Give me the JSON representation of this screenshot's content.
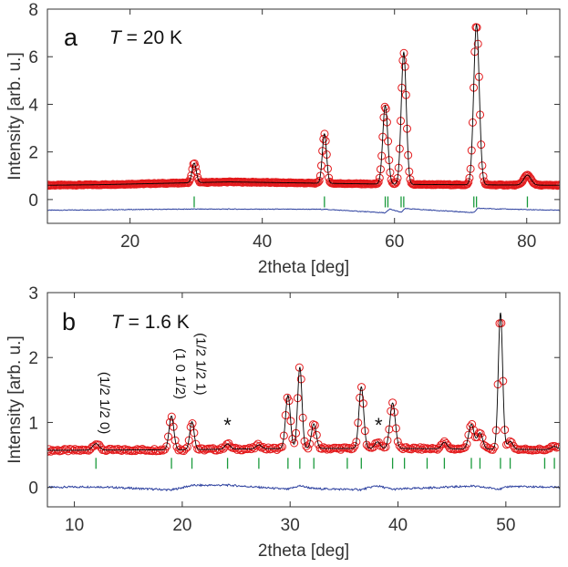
{
  "chart_data": [
    {
      "type": "scatter",
      "panel": "a",
      "temperature_label": "T = 20 K",
      "temperature_label_parts": {
        "var": "T",
        "rest": " = 20 K"
      },
      "xlabel": "2theta [deg]",
      "ylabel": "Intensity [arb. u.]",
      "xlim": [
        7.5,
        85
      ],
      "ylim": [
        -1,
        8
      ],
      "xticks": [
        20,
        40,
        60,
        80
      ],
      "yticks": [
        0,
        2,
        4,
        6,
        8
      ],
      "background": {
        "x": [
          7.5,
          15,
          25,
          35,
          45,
          50,
          55,
          60,
          70,
          85
        ],
        "y": [
          0.6,
          0.62,
          0.68,
          0.74,
          0.7,
          0.68,
          0.66,
          0.64,
          0.62,
          0.6
        ]
      },
      "peaks": [
        {
          "x": 29.7,
          "height": 0.82,
          "width": 0.32
        },
        {
          "x": 49.4,
          "height": 2.08,
          "width": 0.32
        },
        {
          "x": 58.6,
          "height": 3.3,
          "width": 0.38
        },
        {
          "x": 61.4,
          "height": 5.55,
          "width": 0.38
        },
        {
          "x": 72.4,
          "height": 6.75,
          "width": 0.42
        },
        {
          "x": 80.1,
          "height": 0.42,
          "width": 0.55
        }
      ],
      "bragg_ticks": {
        "y": -0.1,
        "x": [
          29.7,
          49.4,
          58.6,
          59.0,
          61.0,
          61.4,
          72.0,
          72.4,
          80.1
        ]
      },
      "difference": {
        "offset": -0.45,
        "x": [
          7.5,
          29.7,
          49.4,
          58.6,
          59.3,
          61.0,
          61.6,
          72.0,
          72.6,
          80.1,
          85
        ],
        "y": [
          0.0,
          0.1,
          0.08,
          -0.22,
          0.1,
          -0.18,
          0.14,
          -0.2,
          0.16,
          0.05,
          0.0
        ]
      },
      "colors": {
        "observed": "#e31a1c",
        "calculated": "#000000",
        "difference": "#2b3f9e",
        "bragg": "#1a9a3c"
      }
    },
    {
      "type": "scatter",
      "panel": "b",
      "temperature_label": "T = 1.6 K",
      "temperature_label_parts": {
        "var": "T",
        "rest": " = 1.6 K"
      },
      "xlabel": "2theta [deg]",
      "ylabel": "Intensity [arb. u.]",
      "xlim": [
        7.5,
        55
      ],
      "ylim": [
        -0.3,
        3
      ],
      "xticks": [
        10,
        20,
        30,
        40,
        50
      ],
      "yticks": [
        0,
        1,
        2,
        3
      ],
      "background": {
        "x": [
          7.5,
          20,
          30,
          40,
          55
        ],
        "y": [
          0.57,
          0.58,
          0.6,
          0.6,
          0.58
        ]
      },
      "peaks": [
        {
          "x": 12.0,
          "height": 0.1,
          "width": 0.3
        },
        {
          "x": 19.0,
          "height": 0.52,
          "width": 0.22
        },
        {
          "x": 20.9,
          "height": 0.43,
          "width": 0.2
        },
        {
          "x": 24.2,
          "height": 0.08,
          "width": 0.25
        },
        {
          "x": 27.1,
          "height": 0.06,
          "width": 0.25
        },
        {
          "x": 29.8,
          "height": 0.82,
          "width": 0.22
        },
        {
          "x": 30.9,
          "height": 1.25,
          "width": 0.2
        },
        {
          "x": 32.2,
          "height": 0.38,
          "width": 0.22
        },
        {
          "x": 36.6,
          "height": 0.95,
          "width": 0.22
        },
        {
          "x": 38.1,
          "height": 0.1,
          "width": 0.25
        },
        {
          "x": 39.5,
          "height": 0.7,
          "width": 0.25
        },
        {
          "x": 44.3,
          "height": 0.1,
          "width": 0.25
        },
        {
          "x": 46.8,
          "height": 0.38,
          "width": 0.25
        },
        {
          "x": 47.6,
          "height": 0.25,
          "width": 0.25
        },
        {
          "x": 49.5,
          "height": 2.1,
          "width": 0.2
        },
        {
          "x": 50.4,
          "height": 0.12,
          "width": 0.25
        },
        {
          "x": 54.5,
          "height": 0.05,
          "width": 0.3
        }
      ],
      "bragg_ticks": {
        "y": 0.37,
        "x": [
          12.0,
          19.0,
          20.9,
          24.2,
          27.1,
          29.8,
          30.9,
          32.2,
          35.3,
          36.6,
          39.5,
          40.6,
          42.7,
          44.3,
          46.8,
          47.6,
          49.5,
          50.4,
          53.6,
          54.5
        ]
      },
      "difference": {
        "offset": 0.0,
        "x": [
          7.5,
          12.0,
          19.0,
          20.9,
          24.2,
          29.8,
          30.9,
          32.2,
          36.6,
          38.0,
          39.5,
          46.8,
          49.5,
          50.3,
          55
        ],
        "y": [
          0.0,
          0.02,
          -0.08,
          0.06,
          0.07,
          -0.06,
          0.05,
          -0.04,
          -0.07,
          0.05,
          -0.06,
          0.04,
          -0.05,
          0.03,
          0.0
        ]
      },
      "annotations": [
        {
          "text": "(1/2 1/2 0)",
          "x": 12.0,
          "y": 1.3
        },
        {
          "text": "(1 0 1/2)",
          "x": 19.0,
          "y": 1.75
        },
        {
          "text": "(1/2 1/2 1)",
          "x": 20.9,
          "y": 1.9
        },
        {
          "text": "*",
          "x": 24.2,
          "y": 0.85
        },
        {
          "text": "*",
          "x": 38.2,
          "y": 0.85
        }
      ],
      "colors": {
        "observed": "#e31a1c",
        "calculated": "#000000",
        "difference": "#2b3f9e",
        "bragg": "#1a9a3c"
      }
    }
  ]
}
